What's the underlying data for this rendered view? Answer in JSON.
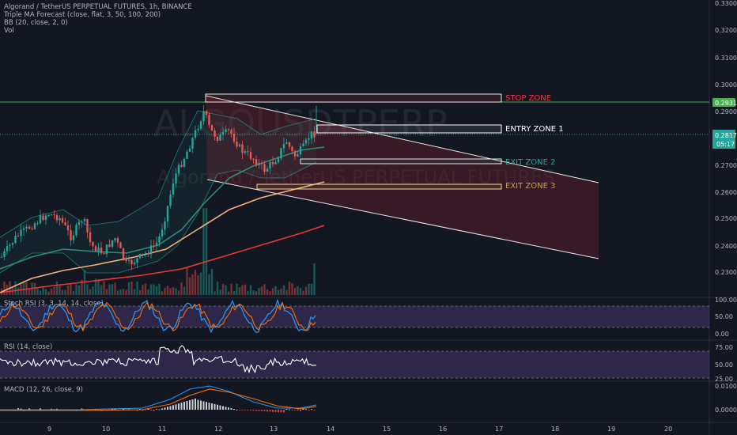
{
  "title": "Algorand / TetherUS PERPETUAL FUTURES, 1h, BINANCE",
  "indicators": [
    "Triple MA Forecast (close, flat, 3, 50, 100, 200)",
    "BB (20, close, 2, 0)",
    "Vol"
  ],
  "watermark": {
    "symbol": "ALGOUSDTPERP",
    "name": "Algorand / TetherUS PERPETUAL FUTURES"
  },
  "price_axis": {
    "ticks": [
      "0.3300",
      "0.3200",
      "0.3100",
      "0.3000",
      "0.2900",
      "0.2800",
      "0.2700",
      "0.2600",
      "0.2500",
      "0.2400",
      "0.2300"
    ],
    "stop_price": "0.2931",
    "last_price": "0.2817",
    "countdown": "05:17"
  },
  "zones": {
    "stop": "STOP ZONE",
    "entry": "ENTRY ZONE 1",
    "exit2": "EXIT ZONE 2",
    "exit3": "EXIT ZONE 3"
  },
  "panes": {
    "stoch": {
      "label": "Stoch RSI (3, 3, 14, 14, close)",
      "ticks": [
        "100.00",
        "50.00",
        "0.00"
      ]
    },
    "rsi": {
      "label": "RSI (14, close)",
      "ticks": [
        "75.00",
        "50.00",
        "25.00"
      ]
    },
    "macd": {
      "label": "MACD (12, 26, close, 9)",
      "ticks": [
        "0.0100",
        "0.0000"
      ]
    }
  },
  "x_axis": [
    "9",
    "10",
    "11",
    "12",
    "13",
    "14",
    "15",
    "16",
    "17",
    "18",
    "19",
    "20"
  ],
  "colors": {
    "bg": "#131722",
    "up": "#26a69a",
    "down": "#ef5350",
    "stop": "#f23645",
    "entry": "#ffffff",
    "exit2": "#26a69a",
    "exit3": "#c8a040",
    "green_line": "#4caf50",
    "ma_orange": "#f0b27a",
    "ma_red": "#e53935",
    "ma_teal": "#2e8b78"
  }
}
